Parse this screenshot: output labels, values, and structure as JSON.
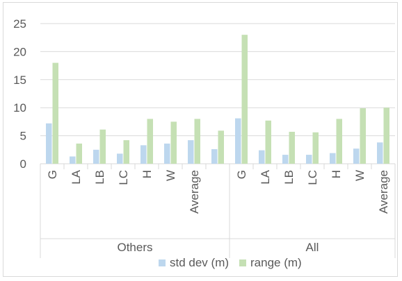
{
  "chart_data": {
    "type": "bar",
    "title": "",
    "xlabel": "",
    "ylabel": "",
    "ylim": [
      0,
      25
    ],
    "yticks": [
      0,
      5,
      10,
      15,
      20,
      25
    ],
    "grid": "horizontal",
    "legend_position": "bottom",
    "groups": [
      {
        "label": "Others",
        "categories": [
          "G",
          "LA",
          "LB",
          "LC",
          "H",
          "W",
          "Average",
          ""
        ]
      },
      {
        "label": "All",
        "categories": [
          "G",
          "LA",
          "LB",
          "LC",
          "H",
          "W",
          "Average"
        ]
      }
    ],
    "series": [
      {
        "name": "std dev (m)",
        "color": "#bdd7ee",
        "values": [
          7.2,
          1.3,
          2.5,
          1.8,
          3.3,
          3.6,
          4.2,
          2.6,
          8.1,
          2.4,
          1.6,
          1.6,
          1.9,
          2.7,
          3.8
        ]
      },
      {
        "name": "range (m)",
        "color": "#c5e0b4",
        "values": [
          18.0,
          3.6,
          6.1,
          4.2,
          8.0,
          7.5,
          8.0,
          5.9,
          23.0,
          7.7,
          5.7,
          5.6,
          8.0,
          9.9,
          10.0
        ]
      }
    ]
  }
}
